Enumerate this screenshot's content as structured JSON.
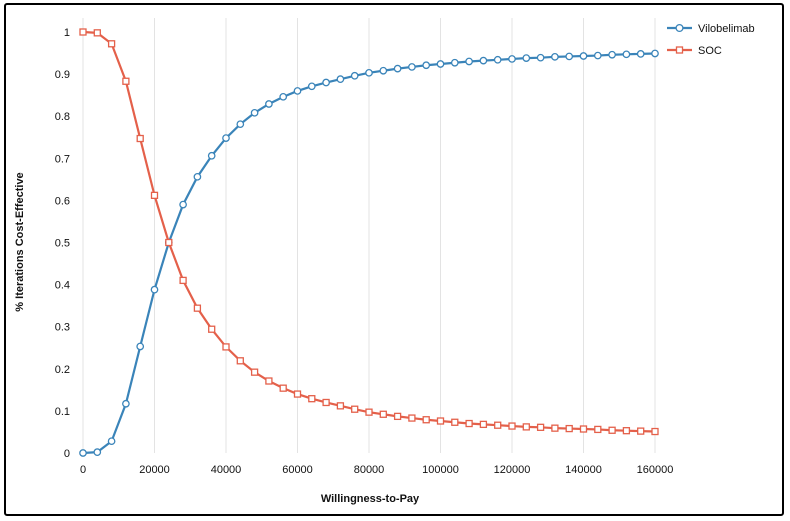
{
  "chart_data": {
    "type": "line",
    "xlabel": "Willingness-to-Pay",
    "ylabel": "% Iterations Cost-Effective",
    "xlim": [
      0,
      160000
    ],
    "ylim": [
      0,
      1
    ],
    "x_ticks": [
      0,
      20000,
      40000,
      60000,
      80000,
      100000,
      120000,
      140000,
      160000
    ],
    "x_tick_labels": [
      "0",
      "20000",
      "40000",
      "60000",
      "80000",
      "100000",
      "120000",
      "140000",
      "160000"
    ],
    "y_ticks": [
      0,
      0.1,
      0.2,
      0.3,
      0.4,
      0.5,
      0.6,
      0.7,
      0.8,
      0.9,
      1
    ],
    "y_tick_labels": [
      "0",
      "0.1",
      "0.2",
      "0.3",
      "0.4",
      "0.5",
      "0.6",
      "0.7",
      "0.8",
      "0.9",
      "1"
    ],
    "grid": "vertical",
    "legend_position": "top-right",
    "x": [
      0,
      4000,
      8000,
      12000,
      16000,
      20000,
      24000,
      28000,
      32000,
      36000,
      40000,
      44000,
      48000,
      52000,
      56000,
      60000,
      64000,
      68000,
      72000,
      76000,
      80000,
      84000,
      88000,
      92000,
      96000,
      100000,
      104000,
      108000,
      112000,
      116000,
      120000,
      124000,
      128000,
      132000,
      136000,
      140000,
      144000,
      148000,
      152000,
      156000,
      160000
    ],
    "series": [
      {
        "name": "Vilobelimab",
        "color": "#3a84b9",
        "marker": "circle",
        "values": [
          0,
          0.002,
          0.028,
          0.117,
          0.253,
          0.388,
          0.5,
          0.59,
          0.656,
          0.706,
          0.748,
          0.781,
          0.808,
          0.829,
          0.846,
          0.86,
          0.871,
          0.88,
          0.888,
          0.896,
          0.903,
          0.908,
          0.913,
          0.917,
          0.921,
          0.924,
          0.927,
          0.93,
          0.932,
          0.934,
          0.936,
          0.938,
          0.939,
          0.941,
          0.942,
          0.943,
          0.944,
          0.946,
          0.947,
          0.948,
          0.949
        ]
      },
      {
        "name": "SOC",
        "color": "#e4604a",
        "marker": "square",
        "values": [
          1,
          0.998,
          0.972,
          0.883,
          0.747,
          0.612,
          0.5,
          0.41,
          0.344,
          0.294,
          0.252,
          0.219,
          0.192,
          0.171,
          0.154,
          0.14,
          0.129,
          0.12,
          0.112,
          0.104,
          0.097,
          0.092,
          0.087,
          0.083,
          0.079,
          0.076,
          0.073,
          0.07,
          0.068,
          0.066,
          0.064,
          0.062,
          0.061,
          0.059,
          0.058,
          0.057,
          0.056,
          0.054,
          0.053,
          0.052,
          0.051
        ]
      }
    ]
  }
}
